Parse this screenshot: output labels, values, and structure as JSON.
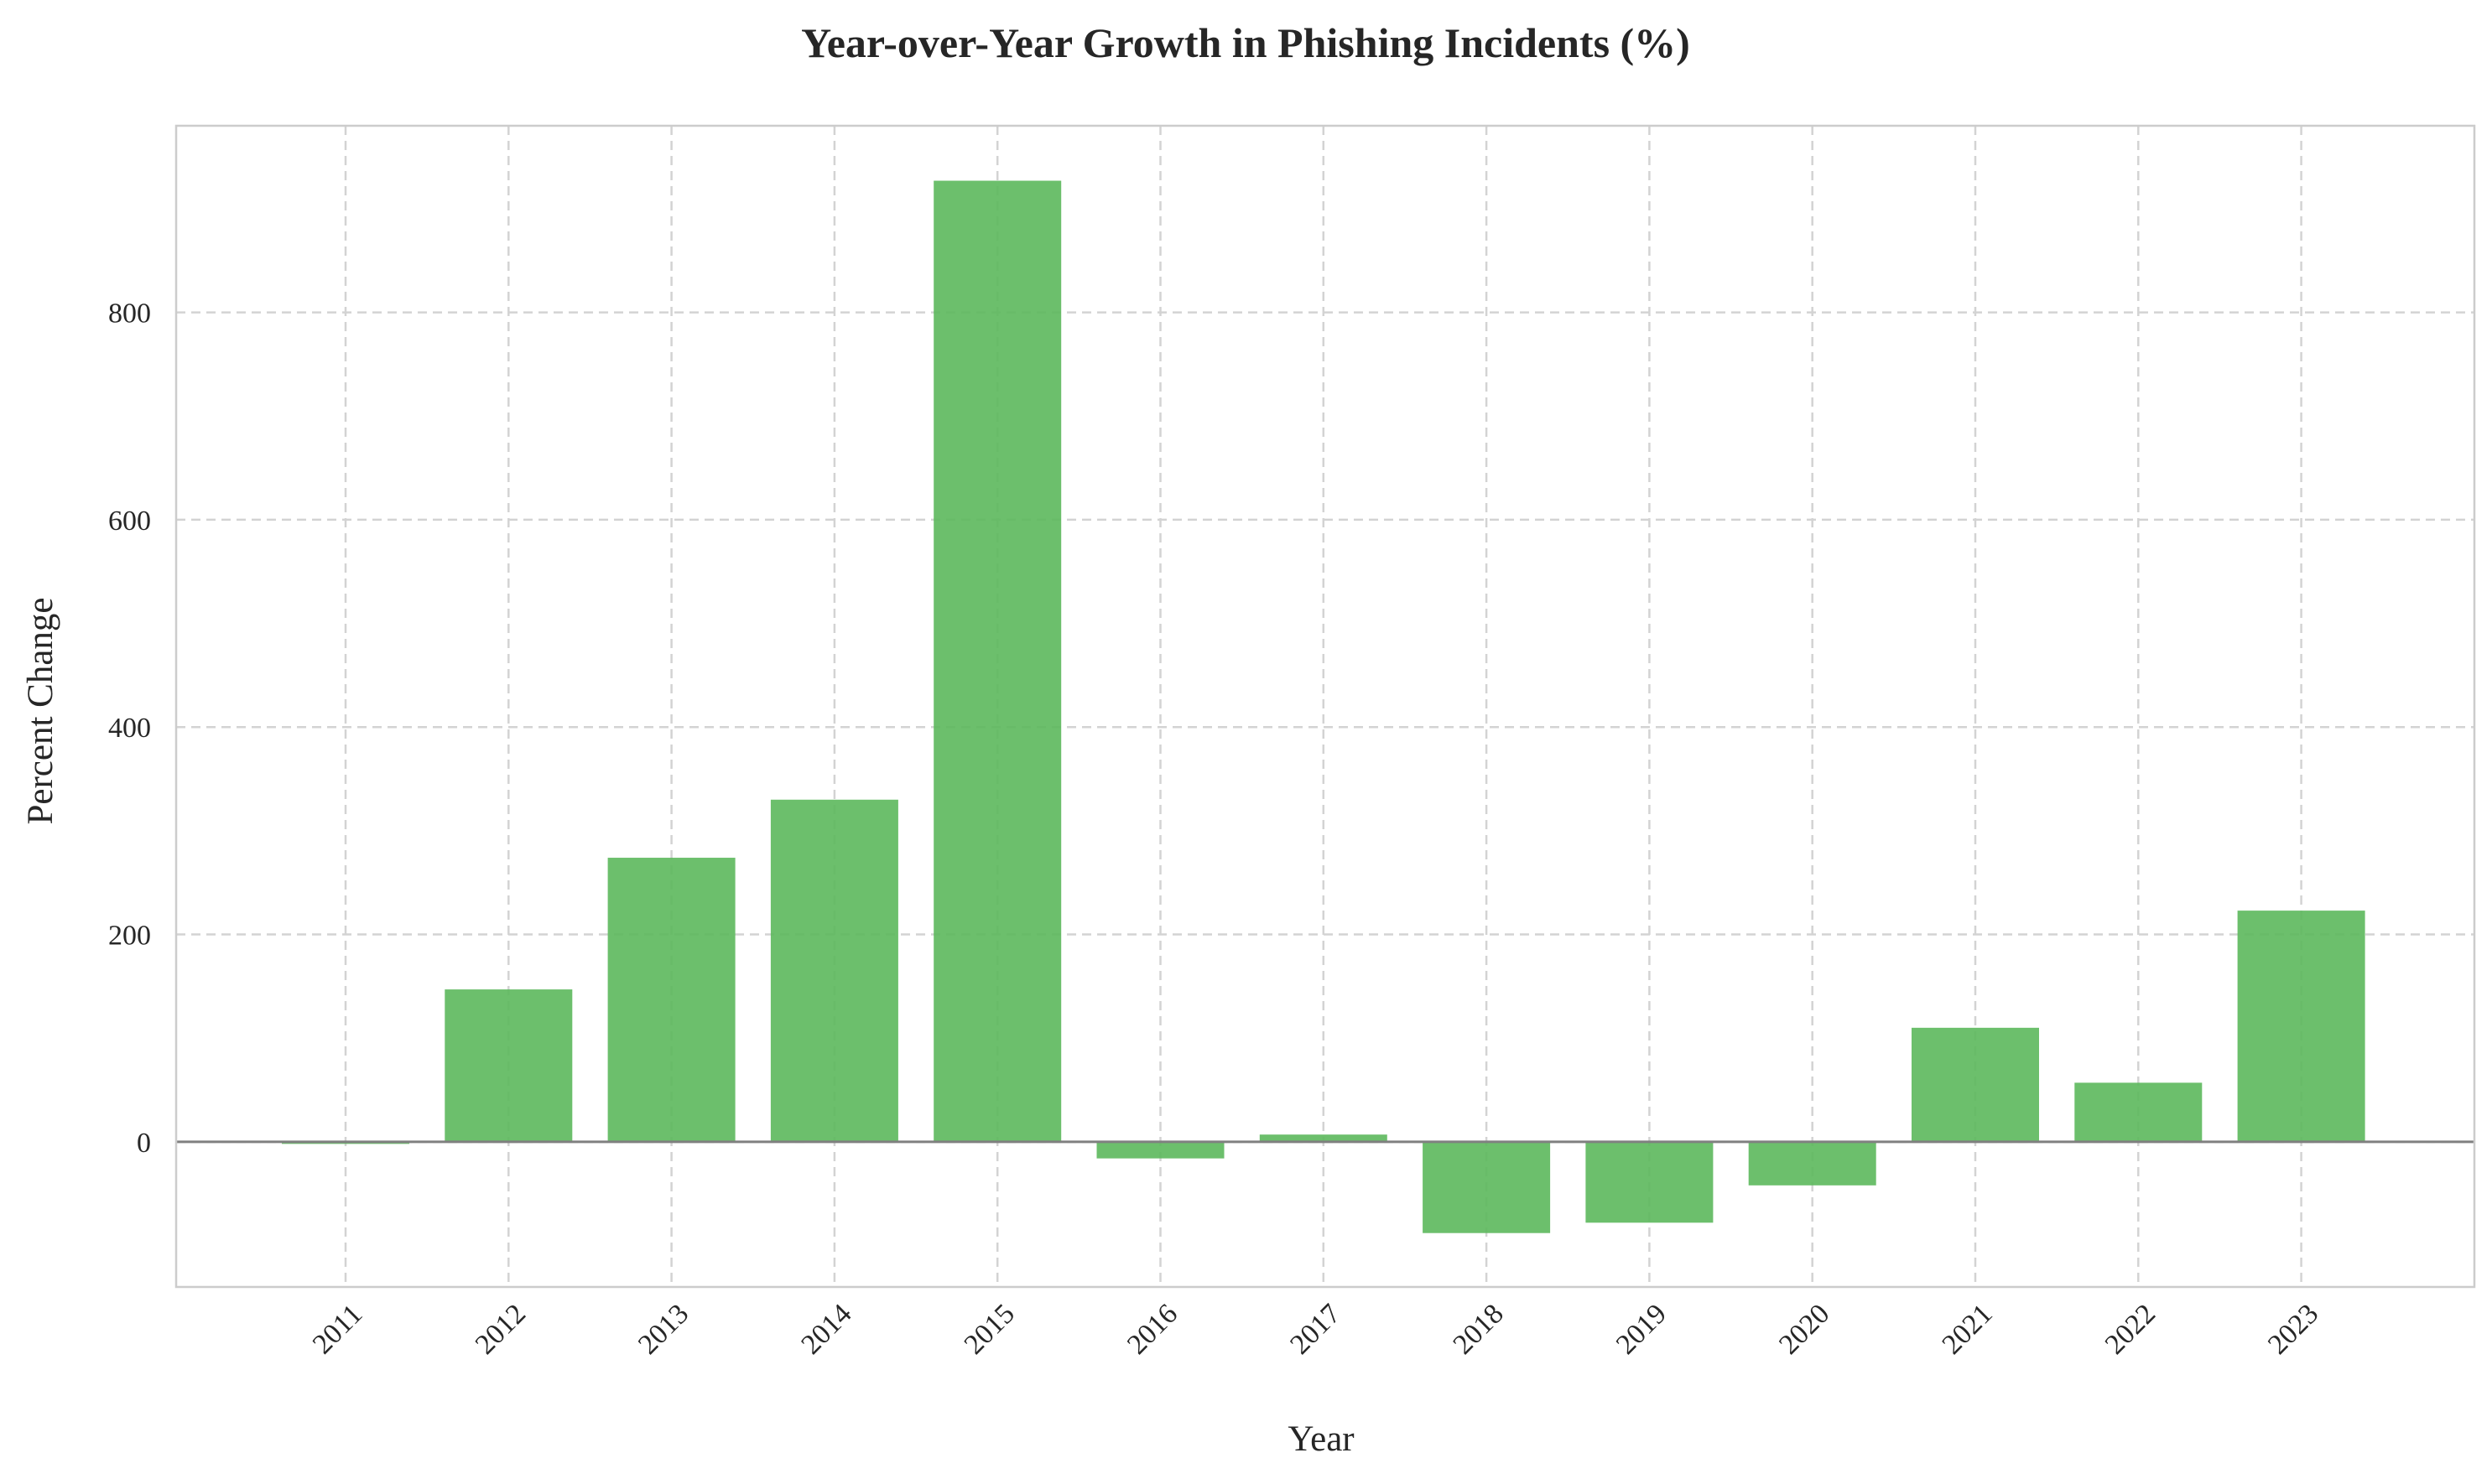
{
  "chart_data": {
    "type": "bar",
    "title": "Year-over-Year Growth in Phishing Incidents (%)",
    "xlabel": "Year",
    "ylabel": "Percent Change",
    "categories": [
      "2011",
      "2012",
      "2013",
      "2014",
      "2015",
      "2016",
      "2017",
      "2018",
      "2019",
      "2020",
      "2021",
      "2022",
      "2023"
    ],
    "values": [
      -2,
      147,
      274,
      330,
      927,
      -16,
      7,
      -88,
      -78,
      -42,
      110,
      57,
      223
    ],
    "ylim": [
      -140,
      980
    ],
    "yticks": [
      0,
      200,
      400,
      600,
      800
    ],
    "grid": true,
    "bar_color": "#5cb85c",
    "baseline_color": "#808080",
    "grid_color": "#d3d3d3",
    "frame_color": "#cccccc"
  }
}
